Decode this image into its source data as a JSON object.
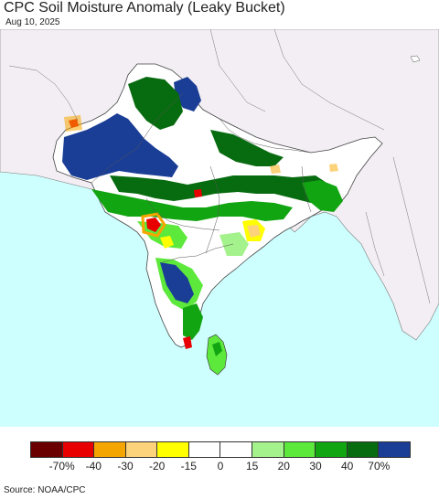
{
  "title": "CPC Soil Moisture Anomaly (Leaky Bucket)",
  "date": "Aug 10, 2025",
  "source": "Source: NOAA/CPC",
  "legend": {
    "colors": [
      "#6b0000",
      "#e80000",
      "#f5a500",
      "#fcd27a",
      "#ffff00",
      "#ffffff",
      "#ffffff",
      "#a3f28c",
      "#5de83c",
      "#12a512",
      "#076b0f",
      "#1a3e96"
    ],
    "ticks": [
      "-70%",
      "-40",
      "-30",
      "-20",
      "-15",
      "0",
      "15",
      "20",
      "30",
      "40",
      "70%"
    ]
  },
  "map_colors": {
    "ocean": "#ceffff",
    "land_outside": "#f2eef3",
    "land_neutral": "#ffffff",
    "border": "#555555"
  }
}
